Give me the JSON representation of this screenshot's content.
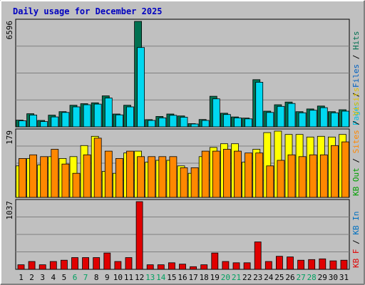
{
  "colors": {
    "background": "#c0c0c0",
    "frame_border": "#000000",
    "title": "#0000c0",
    "gridline": "#808080",
    "hits": "#007050",
    "files": "#00d8f0",
    "pages": "#00c0e0",
    "visits": "#ffff00",
    "sites": "#ff8800",
    "kbf": "#e00000",
    "weekend_label": "#00a060",
    "weekday_label": "#000000"
  },
  "chart_data": {
    "type": "bar",
    "title": "Daily usage for December 2025",
    "categories": [
      "1",
      "2",
      "3",
      "4",
      "5",
      "6",
      "7",
      "8",
      "9",
      "10",
      "11",
      "12",
      "13",
      "14",
      "15",
      "16",
      "17",
      "18",
      "19",
      "20",
      "21",
      "22",
      "23",
      "24",
      "25",
      "26",
      "27",
      "28",
      "29",
      "30",
      "31"
    ],
    "weekend_days": [
      "6",
      "7",
      "13",
      "14",
      "20",
      "21",
      "27",
      "28"
    ],
    "panels": [
      {
        "id": "hits-files-pages",
        "max_label": "6596",
        "ymax": 6596,
        "legend": [
          {
            "text": "Hits",
            "color": "#007050"
          },
          {
            "text": "Files",
            "color": "#0060c0"
          },
          {
            "text": "Pages",
            "color": "#00c0e0"
          }
        ],
        "series": [
          {
            "name": "Hits",
            "color": "#007050",
            "values": [
              420,
              820,
              400,
              730,
              950,
              1350,
              1450,
              1500,
              1940,
              800,
              1350,
              6596,
              450,
              650,
              800,
              680,
              200,
              460,
              1910,
              850,
              620,
              550,
              2950,
              980,
              1380,
              1550,
              950,
              1120,
              1300,
              950,
              1070
            ]
          },
          {
            "name": "Files",
            "color": "#00d8f0",
            "values": [
              380,
              740,
              330,
              620,
              900,
              1250,
              1380,
              1420,
              1800,
              750,
              1250,
              4960,
              400,
              560,
              720,
              600,
              180,
              400,
              1750,
              770,
              560,
              500,
              2790,
              900,
              1280,
              1460,
              880,
              1040,
              1200,
              880,
              980
            ]
          }
        ]
      },
      {
        "id": "visits-sites",
        "max_label": "179",
        "ymax": 179,
        "legend": [
          {
            "text": "Visits",
            "color": "#e0c000"
          },
          {
            "text": "Sites",
            "color": "#ff8800"
          },
          {
            "text": "KB Out",
            "color": "#00a000"
          }
        ],
        "series": [
          {
            "name": "Visits",
            "color": "#ffff00",
            "values": [
              85,
              105,
              88,
              110,
              105,
              110,
              140,
              165,
              70,
              65,
              120,
              125,
              95,
              100,
              100,
              85,
              65,
              110,
              135,
              145,
              145,
              95,
              130,
              175,
              179,
              170,
              170,
              163,
              165,
              163,
              170
            ]
          },
          {
            "name": "Sites",
            "color": "#ff8800",
            "values": [
              105,
              115,
              110,
              130,
              90,
              65,
              115,
              160,
              125,
              105,
              125,
              110,
              110,
              110,
              110,
              80,
              80,
              125,
              125,
              130,
              125,
              120,
              120,
              85,
              100,
              115,
              110,
              115,
              115,
              140,
              150
            ]
          }
        ]
      },
      {
        "id": "kbf-kbin",
        "max_label": "1037",
        "ymax": 1037,
        "legend": [
          {
            "text": "KB In",
            "color": "#0070c0"
          },
          {
            "text": "KB F",
            "color": "#e00000"
          }
        ],
        "series": [
          {
            "name": "KB F",
            "color": "#e00000",
            "values": [
              70,
              120,
              70,
              120,
              140,
              180,
              180,
              180,
              250,
              120,
              180,
              1037,
              70,
              70,
              100,
              80,
              40,
              70,
              250,
              120,
              100,
              100,
              420,
              120,
              200,
              190,
              140,
              150,
              160,
              130,
              140
            ]
          }
        ]
      }
    ]
  }
}
